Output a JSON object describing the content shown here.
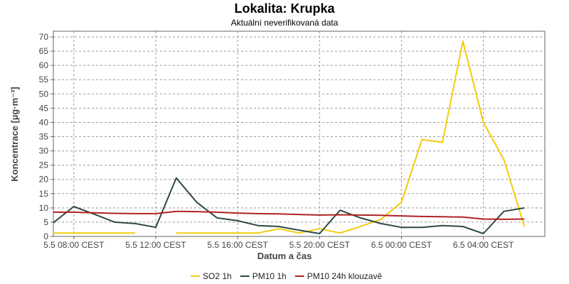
{
  "chart_data": {
    "type": "line",
    "title": "Lokalita: Krupka",
    "subtitle": "Aktuální neverifikovaná data",
    "xlabel": "Datum a čas",
    "ylabel": "Koncentrace [µg·m⁻³]",
    "ylim": [
      0,
      72
    ],
    "yticks": [
      0,
      5,
      10,
      15,
      20,
      25,
      30,
      35,
      40,
      45,
      50,
      55,
      60,
      65,
      70
    ],
    "xlim": [
      "2024-05-05 07:00",
      "2024-05-06 07:00"
    ],
    "xticks": [
      {
        "x": "2024-05-05 08:00",
        "label": "5.5 08:00 CEST"
      },
      {
        "x": "2024-05-05 12:00",
        "label": "5.5 12:00 CEST"
      },
      {
        "x": "2024-05-05 16:00",
        "label": "5.5 16:00 CEST"
      },
      {
        "x": "2024-05-05 20:00",
        "label": "5.5 20:00 CEST"
      },
      {
        "x": "2024-05-06 00:00",
        "label": "6.5 00:00 CEST"
      },
      {
        "x": "2024-05-06 04:00",
        "label": "6.5 04:00 CEST"
      }
    ],
    "grid": true,
    "legend_position": "bottom",
    "series": [
      {
        "name": "SO2 1h",
        "color": "#f2cc0c",
        "points": [
          [
            "2024-05-05 07:00",
            1.2
          ],
          [
            "2024-05-05 08:00",
            1.2
          ],
          [
            "2024-05-05 09:00",
            1.2
          ],
          [
            "2024-05-05 10:00",
            1.2
          ],
          [
            "2024-05-05 11:00",
            1.2
          ],
          null,
          [
            "2024-05-05 13:00",
            1.2
          ],
          [
            "2024-05-05 14:00",
            1.2
          ],
          [
            "2024-05-05 15:00",
            1.2
          ],
          [
            "2024-05-05 16:00",
            1.2
          ],
          [
            "2024-05-05 17:00",
            1.2
          ],
          [
            "2024-05-05 18:00",
            2.7
          ],
          [
            "2024-05-05 19:00",
            1.2
          ],
          [
            "2024-05-05 20:00",
            2.7
          ],
          [
            "2024-05-05 21:00",
            1.2
          ],
          [
            "2024-05-05 22:00",
            3.5
          ],
          [
            "2024-05-05 23:00",
            6.0
          ],
          [
            "2024-05-06 00:00",
            12.0
          ],
          [
            "2024-05-06 01:00",
            34.0
          ],
          [
            "2024-05-06 02:00",
            33.0
          ],
          [
            "2024-05-06 03:00",
            68.5
          ],
          [
            "2024-05-06 04:00",
            40.0
          ],
          [
            "2024-05-06 05:00",
            27.0
          ],
          [
            "2024-05-06 06:00",
            3.5
          ]
        ]
      },
      {
        "name": "PM10 1h",
        "color": "#2e4a42",
        "points": [
          [
            "2024-05-05 07:00",
            4.8
          ],
          [
            "2024-05-05 08:00",
            10.5
          ],
          [
            "2024-05-05 09:00",
            7.8
          ],
          [
            "2024-05-05 10:00",
            5.0
          ],
          [
            "2024-05-05 11:00",
            4.5
          ],
          [
            "2024-05-05 12:00",
            3.2
          ],
          [
            "2024-05-05 13:00",
            20.5
          ],
          [
            "2024-05-05 14:00",
            12.0
          ],
          [
            "2024-05-05 15:00",
            6.5
          ],
          [
            "2024-05-05 16:00",
            5.5
          ],
          [
            "2024-05-05 17:00",
            3.8
          ],
          [
            "2024-05-05 18:00",
            3.5
          ],
          [
            "2024-05-05 19:00",
            2.2
          ],
          [
            "2024-05-05 20:00",
            1.0
          ],
          [
            "2024-05-05 21:00",
            9.2
          ],
          [
            "2024-05-05 22:00",
            6.5
          ],
          [
            "2024-05-05 23:00",
            4.5
          ],
          [
            "2024-05-06 00:00",
            3.2
          ],
          [
            "2024-05-06 01:00",
            3.2
          ],
          [
            "2024-05-06 02:00",
            3.8
          ],
          [
            "2024-05-06 03:00",
            3.5
          ],
          [
            "2024-05-06 04:00",
            1.0
          ],
          [
            "2024-05-06 05:00",
            8.8
          ],
          [
            "2024-05-06 06:00",
            10.0
          ]
        ]
      },
      {
        "name": "PM10 24h klouzavě",
        "color": "#b22222",
        "points": [
          [
            "2024-05-05 07:00",
            8.5
          ],
          [
            "2024-05-05 08:00",
            8.5
          ],
          [
            "2024-05-05 09:00",
            8.3
          ],
          [
            "2024-05-05 10:00",
            8.1
          ],
          [
            "2024-05-05 11:00",
            8.0
          ],
          [
            "2024-05-05 12:00",
            8.0
          ],
          [
            "2024-05-05 13:00",
            8.8
          ],
          [
            "2024-05-05 14:00",
            8.7
          ],
          [
            "2024-05-05 15:00",
            8.5
          ],
          [
            "2024-05-05 16:00",
            8.2
          ],
          [
            "2024-05-05 17:00",
            8.0
          ],
          [
            "2024-05-05 18:00",
            7.9
          ],
          [
            "2024-05-05 19:00",
            7.7
          ],
          [
            "2024-05-05 20:00",
            7.5
          ],
          [
            "2024-05-05 21:00",
            7.6
          ],
          [
            "2024-05-05 22:00",
            7.5
          ],
          [
            "2024-05-05 23:00",
            7.4
          ],
          [
            "2024-05-06 00:00",
            7.2
          ],
          [
            "2024-05-06 01:00",
            7.0
          ],
          [
            "2024-05-06 02:00",
            6.9
          ],
          [
            "2024-05-06 03:00",
            6.8
          ],
          [
            "2024-05-06 04:00",
            6.1
          ],
          [
            "2024-05-06 05:00",
            6.0
          ],
          [
            "2024-05-06 06:00",
            6.1
          ]
        ]
      }
    ]
  }
}
